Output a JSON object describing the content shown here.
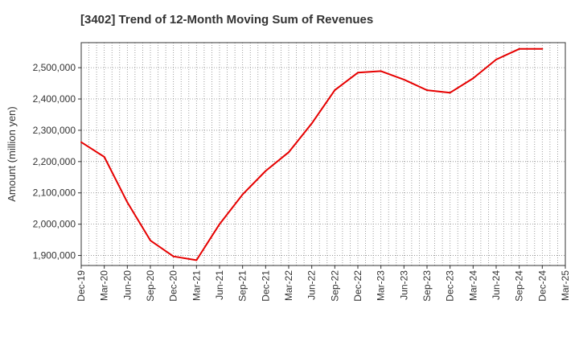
{
  "title": "[3402]  Trend of 12-Month Moving Sum of Revenues",
  "chart_data": {
    "type": "line",
    "title": "[3402]  Trend of 12-Month Moving Sum of Revenues",
    "xlabel": "",
    "ylabel": "Amount (million yen)",
    "x_ticks": [
      "Dec-19",
      "Mar-20",
      "Jun-20",
      "Sep-20",
      "Dec-20",
      "Mar-21",
      "Jun-21",
      "Sep-21",
      "Dec-21",
      "Mar-22",
      "Jun-22",
      "Sep-22",
      "Dec-22",
      "Mar-23",
      "Jun-23",
      "Sep-23",
      "Dec-23",
      "Mar-24",
      "Jun-24",
      "Sep-24",
      "Dec-24",
      "Mar-25"
    ],
    "y_ticks": [
      1900000,
      2000000,
      2100000,
      2200000,
      2300000,
      2400000,
      2500000
    ],
    "y_tick_labels": [
      "1,900,000",
      "2,000,000",
      "2,100,000",
      "2,200,000",
      "2,300,000",
      "2,400,000",
      "2,500,000"
    ],
    "ylim": [
      1868000,
      2580000
    ],
    "grid": true,
    "line_color": "#e60000",
    "series": [
      {
        "x": [
          "Dec-19",
          "Mar-20",
          "Jun-20",
          "Sep-20",
          "Dec-20",
          "Mar-21",
          "Jun-21",
          "Sep-21",
          "Dec-21",
          "Mar-22",
          "Jun-22",
          "Sep-22",
          "Dec-22",
          "Mar-23",
          "Jun-23",
          "Sep-23",
          "Dec-23",
          "Mar-24",
          "Jun-24",
          "Sep-24",
          "Dec-24"
        ],
        "values": [
          2262000,
          2215000,
          2070000,
          1948000,
          1897000,
          1885000,
          2000000,
          2095000,
          2170000,
          2230000,
          2322000,
          2428000,
          2484000,
          2489000,
          2462000,
          2428000,
          2420000,
          2466000,
          2526000,
          2560000,
          2560000
        ]
      }
    ]
  }
}
